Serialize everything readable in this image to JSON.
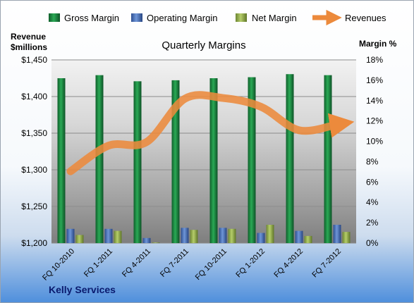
{
  "chart_data": {
    "type": "bar",
    "title": "Quarterly Margins",
    "company": "Kelly Services",
    "left_axis": {
      "label_line1": "Revenue",
      "label_line2": "$millions",
      "min": 1200,
      "max": 1450,
      "step": 50,
      "tick_labels": [
        "$1,200",
        "$1,250",
        "$1,300",
        "$1,350",
        "$1,400",
        "$1,450"
      ]
    },
    "right_axis": {
      "label": "Margin %",
      "min": 0,
      "max": 18,
      "step": 2,
      "tick_labels": [
        "0%",
        "2%",
        "4%",
        "6%",
        "8%",
        "10%",
        "12%",
        "14%",
        "16%",
        "18%"
      ]
    },
    "categories": [
      "FQ 10-2010",
      "FQ 1-2011",
      "FQ 4-2011",
      "FQ 7-2011",
      "FQ 10-2011",
      "FQ 1-2012",
      "FQ 4-2012",
      "FQ 7-2012"
    ],
    "series": [
      {
        "name": "Gross Margin",
        "axis": "right",
        "kind": "bar",
        "color": "#1e8a42",
        "values": [
          16.2,
          16.5,
          15.9,
          16.0,
          16.2,
          16.3,
          16.6,
          16.5
        ]
      },
      {
        "name": "Operating Margin",
        "axis": "right",
        "kind": "bar",
        "color": "#4a74c0",
        "values": [
          1.4,
          1.4,
          0.5,
          1.5,
          1.5,
          1.0,
          1.2,
          1.8
        ]
      },
      {
        "name": "Net Margin",
        "axis": "right",
        "kind": "bar",
        "color": "#93b14a",
        "values": [
          0.8,
          1.2,
          0.0,
          1.3,
          1.4,
          1.8,
          0.7,
          1.1
        ]
      },
      {
        "name": "Revenues",
        "axis": "left",
        "kind": "line",
        "color": "#ec8a3c",
        "values": [
          1298,
          1333,
          1338,
          1397,
          1398,
          1386,
          1354,
          1362
        ]
      }
    ],
    "legend_position": "top",
    "grid": true
  }
}
